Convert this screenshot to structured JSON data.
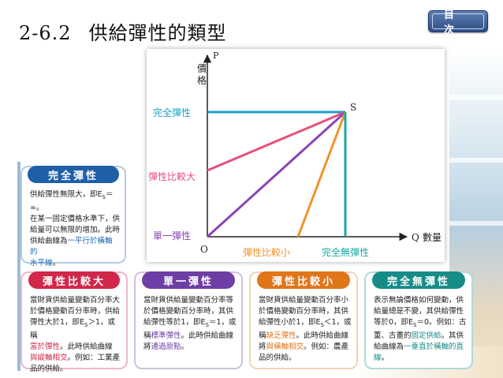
{
  "header": {
    "section_number": "2-6.2",
    "title": "供給彈性的類型",
    "toc_label": "目 次"
  },
  "diagram": {
    "y_axis_label": "P",
    "y_axis_sublabel": "價格",
    "x_axis_label": "Q",
    "x_axis_sublabel": "數量",
    "origin_label": "O",
    "point_label": "S",
    "line_labels": {
      "perfectly_elastic": "完全彈性",
      "relatively_elastic": "彈性比較大",
      "unit_elastic": "單一彈性",
      "relatively_inelastic": "彈性比較小",
      "perfectly_inelastic": "完全無彈性"
    },
    "colors": {
      "perfectly_elastic": "#1aa0c6",
      "relatively_elastic": "#e9507a",
      "unit_elastic": "#8a45b5",
      "relatively_inelastic": "#f0932a",
      "perfectly_inelastic": "#18a8a6"
    }
  },
  "cards": [
    {
      "key": "perfectly_elastic",
      "title": "完全彈性",
      "color": "#1f5fa8",
      "lines": [
        {
          "t": "供給彈性無限大，即E",
          "sub": "S",
          "t2": "＝∞。"
        },
        {
          "t": "在某一固定價格水準下，供"
        },
        {
          "t": "給量可以無限的增加。此時"
        },
        {
          "t": "供給曲線為",
          "hl": "一平行於橫軸的"
        },
        {
          "hl": "水平線",
          "t2": "。"
        }
      ]
    },
    {
      "key": "relatively_elastic",
      "title": "彈性比較大",
      "color": "#d0274a",
      "lines": [
        {
          "t": "當財貨供給量變動百分率大"
        },
        {
          "t": "於價格變動百分率時，供給"
        },
        {
          "t": "彈性大於1，即E",
          "sub": "S",
          "t2": "＞1，或稱"
        },
        {
          "hl": "富於彈性",
          "t2": "。此時供給曲線"
        },
        {
          "hl": "與縱軸相交",
          "t2": "。例如：工業產"
        },
        {
          "t": "品的供給。"
        }
      ]
    },
    {
      "key": "unit_elastic",
      "title": "單一彈性",
      "color": "#6d3ea3",
      "lines": [
        {
          "t": "當財貨供給量變動百分率等"
        },
        {
          "t": "於價格變動百分率時，其供"
        },
        {
          "t": "給彈性等於1，即E",
          "sub": "S",
          "t2": "＝1，或"
        },
        {
          "t": "稱",
          "hl": "標準彈性",
          "t2": "。此時供給曲線"
        },
        {
          "t": "將",
          "hl": "通過原點",
          "t2": "。"
        }
      ]
    },
    {
      "key": "relatively_inelastic",
      "title": "彈性比較小",
      "color": "#e0751a",
      "lines": [
        {
          "t": "當財貨供給量變動百分率小"
        },
        {
          "t": "於價格變動百分率時，其供"
        },
        {
          "t": "給彈性小於1，即E",
          "sub": "S",
          "t2": "＜1，或"
        },
        {
          "t": "稱",
          "hl": "缺乏彈性",
          "t2": "。此時供給曲線"
        },
        {
          "t": "將",
          "hl": "與橫軸相交",
          "t2": "。例如：農產"
        },
        {
          "t": "品的供給。"
        }
      ]
    },
    {
      "key": "perfectly_inelastic",
      "title": "完全無彈性",
      "color": "#168c88",
      "lines": [
        {
          "t": "表示無論價格如何變動，供"
        },
        {
          "t": "給量總是不變，其供給彈性"
        },
        {
          "t": "等於0，即E",
          "sub": "S",
          "t2": "＝0。例如：古"
        },
        {
          "t": "董、古畫的",
          "hl": "固定供給",
          "t2": "。其供"
        },
        {
          "t": "給曲線為",
          "hl": "一垂直於橫軸的直"
        },
        {
          "hl": "線",
          "t2": "。"
        }
      ]
    }
  ]
}
